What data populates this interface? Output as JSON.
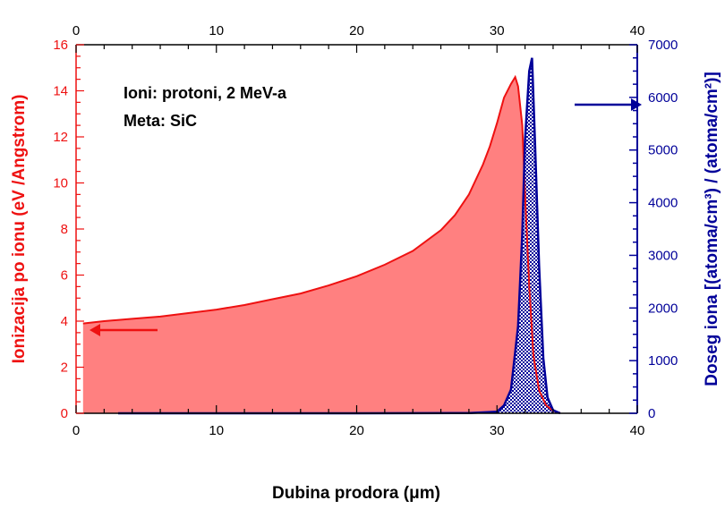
{
  "chart_data": {
    "type": "area",
    "xlabel": "Dubina prodora (μm)",
    "ylabel_left": "Ionizacija po ionu (eV /Angstrom)",
    "ylabel_right": "Doseg iona [(atoma/cm³) / (atoma/cm²)]",
    "xlim": [
      0,
      40
    ],
    "ylim_left": [
      0,
      16
    ],
    "ylim_right": [
      0,
      7000
    ],
    "x_ticks": [
      "0",
      "10",
      "20",
      "30",
      "40"
    ],
    "x_top_ticks": [
      "0",
      "10",
      "20",
      "30",
      "40"
    ],
    "y_left_ticks": [
      "0",
      "2",
      "4",
      "6",
      "8",
      "10",
      "12",
      "14",
      "16"
    ],
    "y_right_ticks": [
      "0",
      "1000",
      "2000",
      "3000",
      "4000",
      "5000",
      "6000",
      "7000"
    ],
    "annotations": [
      "Ioni:  protoni, 2 MeV-a",
      "Meta:  SiC"
    ],
    "colors": {
      "ionization": "#ee1111",
      "ionization_fill": "#ff8080",
      "range": "#000099",
      "range_fill": "#8a6a9a"
    },
    "series": [
      {
        "axis": "left",
        "x": [
          0.5,
          2,
          4,
          6,
          8,
          10,
          12,
          14,
          16,
          18,
          20,
          22,
          24,
          26,
          27,
          28,
          29,
          29.5,
          30,
          30.5,
          31,
          31.3,
          31.5,
          31.8,
          32,
          32.3,
          32.6,
          33,
          33.5,
          34,
          34.5
        ],
        "y": [
          3.9,
          4.0,
          4.1,
          4.2,
          4.35,
          4.5,
          4.7,
          4.95,
          5.2,
          5.55,
          5.95,
          6.45,
          7.05,
          7.95,
          8.6,
          9.5,
          10.8,
          11.6,
          12.6,
          13.7,
          14.3,
          14.6,
          14.2,
          12.5,
          9.5,
          5.5,
          2.5,
          1.0,
          0.35,
          0.1,
          0.02
        ]
      },
      {
        "axis": "right",
        "x": [
          3,
          10,
          20,
          28,
          30,
          30.5,
          31,
          31.5,
          31.8,
          32,
          32.3,
          32.5,
          32.7,
          33,
          33.3,
          33.6,
          34,
          34.5
        ],
        "y": [
          0,
          0,
          0,
          5,
          30,
          150,
          450,
          1650,
          3400,
          5200,
          6500,
          6750,
          5200,
          2800,
          1050,
          300,
          60,
          0
        ]
      }
    ]
  }
}
